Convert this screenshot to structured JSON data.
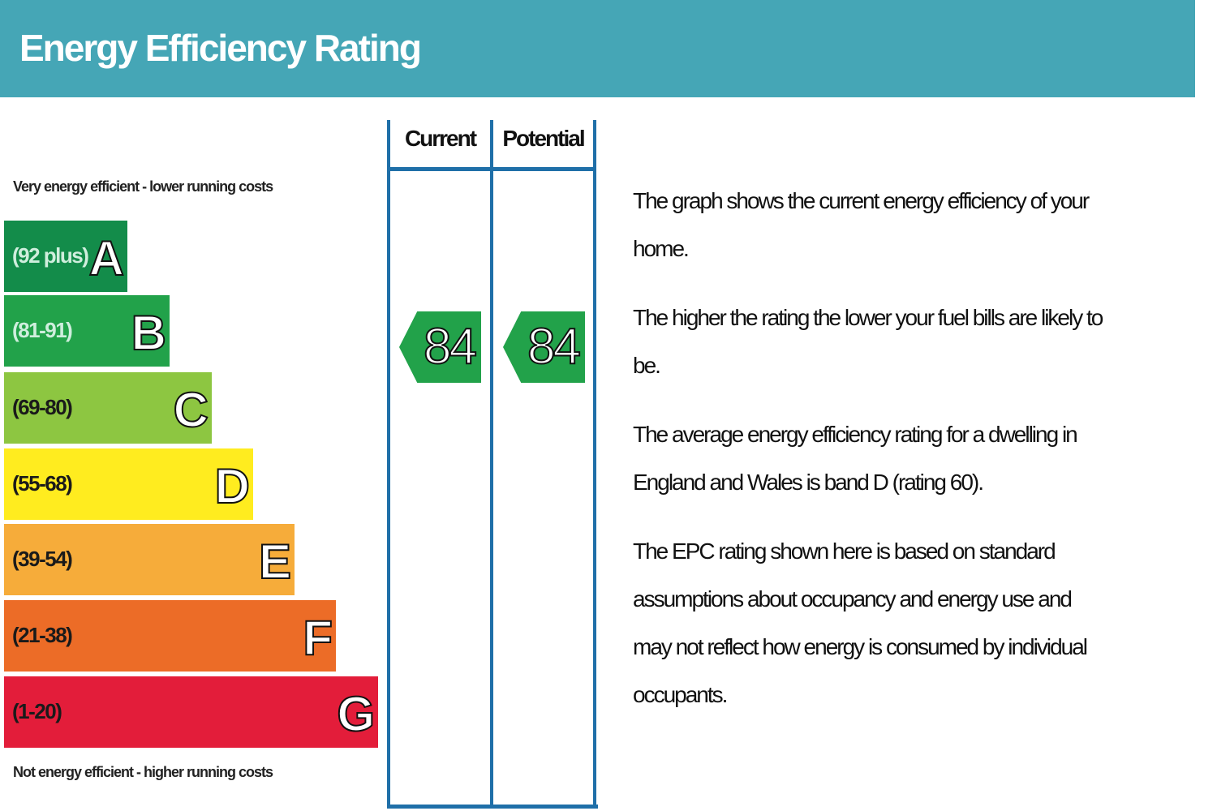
{
  "header": {
    "title": "Energy Efficiency Rating",
    "color": "#45a6b6"
  },
  "chart_data": {
    "type": "bar",
    "title": "Energy Efficiency Rating",
    "top_caption": "Very energy efficient - lower running costs",
    "bottom_caption": "Not energy efficient - higher running costs",
    "bands": [
      {
        "letter": "A",
        "range": "(92 plus)",
        "color": "#138c4a",
        "text_color": "#cfeedd"
      },
      {
        "letter": "B",
        "range": "(81-91)",
        "color": "#22a24a",
        "text_color": "#cfeedd"
      },
      {
        "letter": "C",
        "range": "(69-80)",
        "color": "#8dc641",
        "text_color": "#1a1a1a"
      },
      {
        "letter": "D",
        "range": "(55-68)",
        "color": "#ffec1f",
        "text_color": "#1a1a1a"
      },
      {
        "letter": "E",
        "range": "(39-54)",
        "color": "#f6ac3a",
        "text_color": "#1a1a1a"
      },
      {
        "letter": "F",
        "range": "(21-38)",
        "color": "#ec6c27",
        "text_color": "#1a1a1a"
      },
      {
        "letter": "G",
        "range": "(1-20)",
        "color": "#e31d3a",
        "text_color": "#1a1a1a"
      }
    ],
    "columns": [
      {
        "label": "Current",
        "value": 84,
        "band": "B",
        "color": "#22a24a"
      },
      {
        "label": "Potential",
        "value": 84,
        "band": "B",
        "color": "#22a24a"
      }
    ]
  },
  "description": [
    [
      "The graph shows the current energy efficiency of your",
      "home."
    ],
    [
      "The higher the rating the lower your fuel bills are likely to",
      "be."
    ],
    [
      "The average energy efficiency rating for a dwelling in",
      "England and Wales is band D (rating 60)."
    ],
    [
      "The EPC rating shown here is based on standard",
      "assumptions about occupancy and energy use and",
      "may not reflect how energy is consumed by individual",
      "occupants."
    ]
  ]
}
